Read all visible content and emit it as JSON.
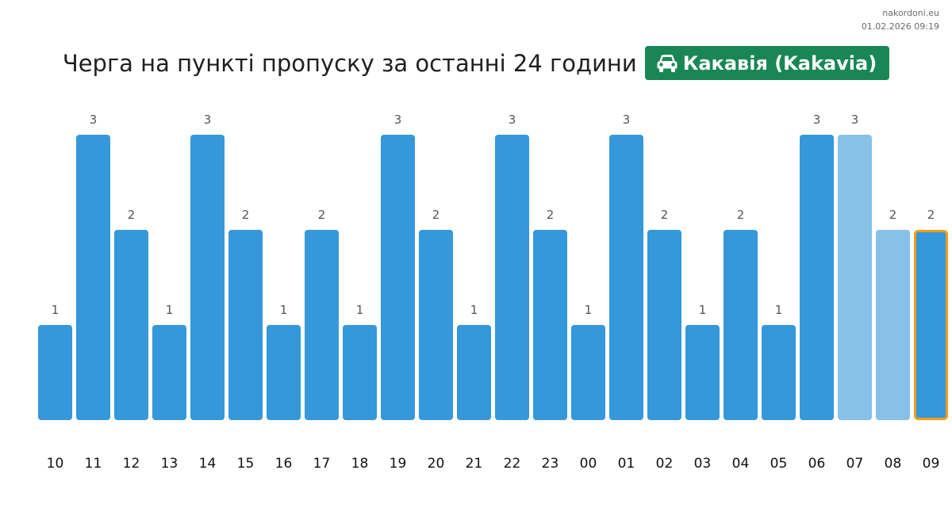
{
  "source": {
    "site": "nakordoni.eu",
    "timestamp": "01.02.2026 09:19"
  },
  "header": {
    "title": "Черга на пункті пропуску за останні 24 години",
    "badge_label": "Какавія (Kakavia)",
    "badge_icon": "car-icon",
    "badge_color": "#198754"
  },
  "chart_data": {
    "type": "bar",
    "categories": [
      "10",
      "11",
      "12",
      "13",
      "14",
      "15",
      "16",
      "17",
      "18",
      "19",
      "20",
      "21",
      "22",
      "23",
      "00",
      "01",
      "02",
      "03",
      "04",
      "05",
      "06",
      "07",
      "08",
      "09"
    ],
    "values": [
      1,
      3,
      2,
      1,
      3,
      2,
      1,
      2,
      1,
      3,
      2,
      1,
      3,
      2,
      1,
      3,
      2,
      1,
      2,
      1,
      3,
      3,
      2,
      2
    ],
    "ylim": [
      0,
      3
    ],
    "grid": false,
    "legend": "none",
    "colors": {
      "bar": "#3498db",
      "bar_light": "#85c1e9",
      "highlight_border": "#f39c12",
      "value_label": "#555555",
      "tick_label": "#111111"
    },
    "light_indices": [
      21,
      22
    ],
    "highlight_index": 23
  }
}
